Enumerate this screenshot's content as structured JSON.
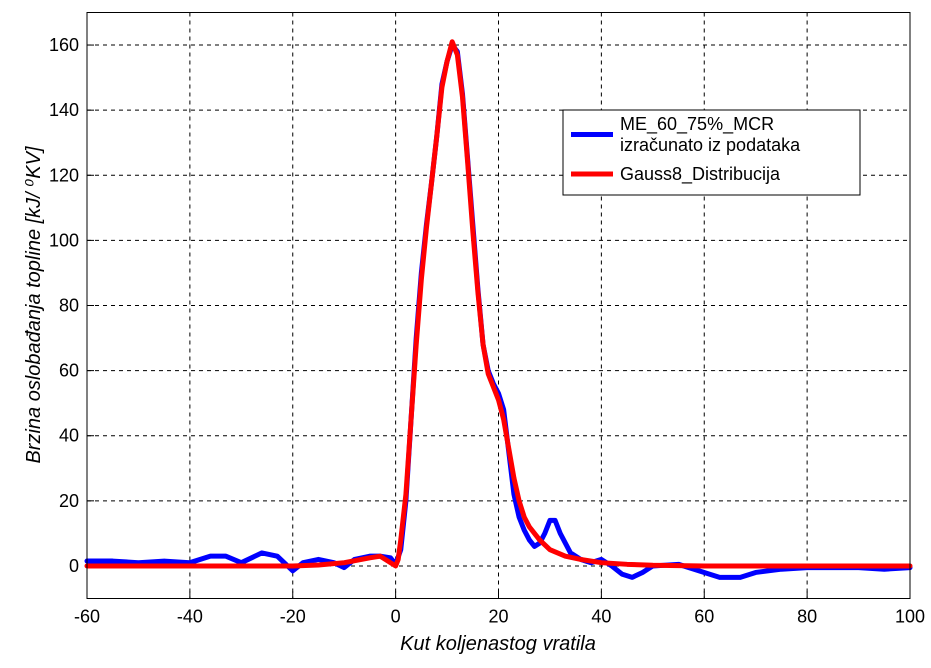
{
  "chart_data": {
    "type": "line",
    "xlabel": "Kut koljenastog vratila",
    "ylabel": "Brzina oslobađanja topline [kJ/ ⁰KV]",
    "xlim": [
      -60,
      100
    ],
    "ylim": [
      -10,
      170
    ],
    "xticks": [
      -60,
      -40,
      -20,
      0,
      20,
      40,
      60,
      80,
      100
    ],
    "yticks": [
      0,
      20,
      40,
      60,
      80,
      100,
      120,
      140,
      160
    ],
    "grid": true,
    "legend": "upper right",
    "series": [
      {
        "name": "ME_60_75%_MCR\nizračunato iz podataka",
        "color": "#0000ff",
        "x": [
          -60,
          -55,
          -50,
          -45,
          -40,
          -36,
          -33,
          -30,
          -26,
          -23,
          -20,
          -18,
          -15,
          -12,
          -10,
          -8,
          -5,
          -3,
          -1,
          0,
          1,
          2,
          3,
          4,
          5,
          6,
          7,
          8,
          9,
          10,
          11,
          12,
          13,
          14,
          15,
          16,
          17,
          18,
          19,
          20,
          21,
          22,
          23,
          24,
          25,
          26,
          27,
          28,
          29,
          30,
          31,
          32,
          34,
          36,
          38,
          40,
          42,
          44,
          46,
          48,
          50,
          55,
          60,
          63,
          67,
          70,
          75,
          80,
          85,
          90,
          95,
          100
        ],
        "values": [
          1.5,
          1.5,
          1,
          1.5,
          1,
          3,
          3,
          1,
          4,
          3,
          -1.5,
          1,
          2,
          1,
          -0.5,
          2,
          3,
          3,
          2.5,
          0.5,
          5,
          20,
          45,
          70,
          90,
          105,
          118,
          132,
          148,
          155,
          160,
          158,
          145,
          125,
          105,
          85,
          68,
          60,
          56,
          53,
          48,
          35,
          22,
          15,
          11,
          8,
          6,
          7,
          10,
          14,
          14,
          10,
          4,
          2,
          1,
          2,
          0,
          -2.5,
          -3.5,
          -2,
          0,
          0.5,
          -2,
          -3.5,
          -3.5,
          -2,
          -1,
          -0.5,
          -0.5,
          -0.5,
          -1,
          -0.5
        ]
      },
      {
        "name": "Gauss8_Distribucija",
        "color": "#ff0000",
        "x": [
          -60,
          -30,
          -20,
          -15,
          -10,
          -5,
          -3,
          -2,
          -1,
          0,
          0.5,
          1,
          2,
          3,
          4,
          5,
          6,
          7,
          8,
          9,
          10,
          11,
          12,
          13,
          14,
          15,
          16,
          17,
          18,
          19,
          20,
          21,
          22,
          23,
          24,
          25,
          26,
          28,
          30,
          33,
          36,
          40,
          45,
          50,
          60,
          100
        ],
        "values": [
          0,
          0,
          0,
          0.3,
          1,
          2.5,
          3,
          2,
          1,
          0,
          2,
          8,
          22,
          45,
          68,
          88,
          104,
          118,
          132,
          147,
          155,
          161,
          157,
          144,
          124,
          103,
          84,
          68,
          59,
          55,
          51,
          45,
          36,
          27,
          20,
          15,
          12,
          8,
          5,
          3,
          2,
          1,
          0.5,
          0.2,
          0,
          0
        ]
      }
    ]
  }
}
